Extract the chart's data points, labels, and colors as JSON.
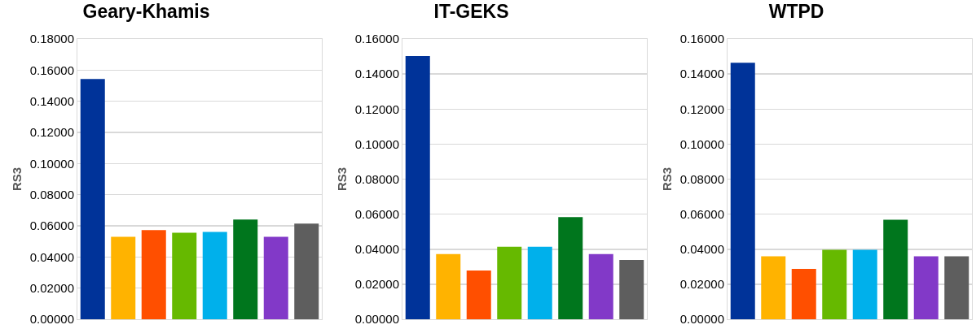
{
  "chart_data": [
    {
      "type": "bar",
      "title": "Geary-Khamis",
      "ylabel": "RS3",
      "categories": [
        null,
        null,
        null,
        null,
        null,
        null,
        null,
        null
      ],
      "values": [
        0.1543,
        0.053,
        0.0572,
        0.0556,
        0.0561,
        0.0641,
        0.053,
        0.0614
      ],
      "colors": [
        "#003399",
        "#ffb300",
        "#ff4f00",
        "#66b900",
        "#00b0eb",
        "#00761d",
        "#8239c8",
        "#5e5e5e"
      ],
      "ylim": [
        0,
        0.18
      ],
      "yticks": [
        {
          "value": 0,
          "label": "0.00000"
        },
        {
          "value": 0.02,
          "label": "0.02000"
        },
        {
          "value": 0.04,
          "label": "0.04000"
        },
        {
          "value": 0.06,
          "label": "0.06000"
        },
        {
          "value": 0.08,
          "label": "0.08000"
        },
        {
          "value": 0.1,
          "label": "0.10000"
        },
        {
          "value": 0.12,
          "label": "0.12000"
        },
        {
          "value": 0.14,
          "label": "0.14000"
        },
        {
          "value": 0.16,
          "label": "0.16000"
        },
        {
          "value": 0.18,
          "label": "0.18000"
        }
      ],
      "grid": "y"
    },
    {
      "type": "bar",
      "title": "IT-GEKS",
      "ylabel": "RS3",
      "categories": [
        null,
        null,
        null,
        null,
        null,
        null,
        null,
        null
      ],
      "values": [
        0.1503,
        0.0372,
        0.0278,
        0.0414,
        0.0414,
        0.0583,
        0.0372,
        0.0339
      ],
      "colors": [
        "#003399",
        "#ffb300",
        "#ff4f00",
        "#66b900",
        "#00b0eb",
        "#00761d",
        "#8239c8",
        "#5e5e5e"
      ],
      "ylim": [
        0,
        0.16
      ],
      "yticks": [
        {
          "value": 0,
          "label": "0.00000"
        },
        {
          "value": 0.02,
          "label": "0.02000"
        },
        {
          "value": 0.04,
          "label": "0.04000"
        },
        {
          "value": 0.06,
          "label": "0.06000"
        },
        {
          "value": 0.08,
          "label": "0.08000"
        },
        {
          "value": 0.1,
          "label": "0.10000"
        },
        {
          "value": 0.12,
          "label": "0.12000"
        },
        {
          "value": 0.14,
          "label": "0.14000"
        },
        {
          "value": 0.16,
          "label": "0.16000"
        }
      ],
      "grid": "y"
    },
    {
      "type": "bar",
      "title": "WTPD",
      "ylabel": "RS3",
      "categories": [
        null,
        null,
        null,
        null,
        null,
        null,
        null,
        null
      ],
      "values": [
        0.1464,
        0.0359,
        0.0288,
        0.0397,
        0.0397,
        0.0568,
        0.0359,
        0.0359
      ],
      "colors": [
        "#003399",
        "#ffb300",
        "#ff4f00",
        "#66b900",
        "#00b0eb",
        "#00761d",
        "#8239c8",
        "#5e5e5e"
      ],
      "ylim": [
        0,
        0.16
      ],
      "yticks": [
        {
          "value": 0,
          "label": "0.00000"
        },
        {
          "value": 0.02,
          "label": "0.02000"
        },
        {
          "value": 0.04,
          "label": "0.04000"
        },
        {
          "value": 0.06,
          "label": "0.06000"
        },
        {
          "value": 0.08,
          "label": "0.08000"
        },
        {
          "value": 0.1,
          "label": "0.10000"
        },
        {
          "value": 0.12,
          "label": "0.12000"
        },
        {
          "value": 0.14,
          "label": "0.14000"
        },
        {
          "value": 0.16,
          "label": "0.16000"
        }
      ],
      "grid": "y"
    }
  ]
}
